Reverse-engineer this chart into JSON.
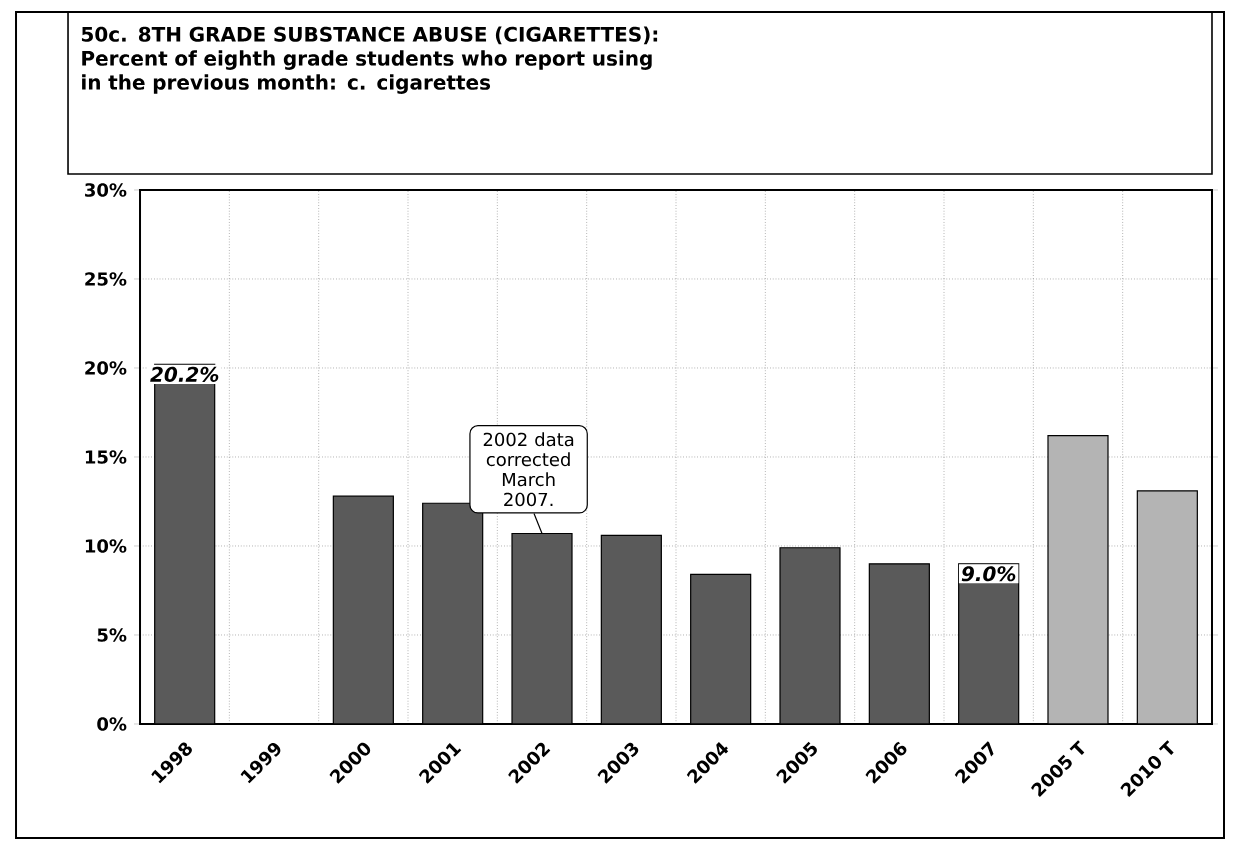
{
  "chart_data": {
    "type": "bar",
    "title": "50c. 8TH GRADE SUBSTANCE ABUSE (CIGARETTES): Percent of eighth grade students who report using in the previous month: c. cigarettes",
    "categories": [
      "1998",
      "1999",
      "2000",
      "2001",
      "2002",
      "2003",
      "2004",
      "2005",
      "2006",
      "2007",
      "2005 T",
      "2010 T"
    ],
    "values": [
      20.2,
      null,
      12.8,
      12.4,
      10.7,
      10.6,
      8.4,
      9.9,
      9.0,
      9.0,
      16.2,
      13.1
    ],
    "colors": [
      "#5a5a5a",
      "#5a5a5a",
      "#5a5a5a",
      "#5a5a5a",
      "#5a5a5a",
      "#5a5a5a",
      "#5a5a5a",
      "#5a5a5a",
      "#5a5a5a",
      "#5a5a5a",
      "#b4b4b4",
      "#b4b4b4"
    ],
    "value_labels": [
      "20.2%",
      null,
      null,
      null,
      null,
      null,
      null,
      null,
      null,
      "9.0%",
      null,
      null
    ],
    "ylim": [
      0,
      30
    ],
    "yticks": [
      {
        "value": 0,
        "label": "0%"
      },
      {
        "value": 5,
        "label": "5%"
      },
      {
        "value": 10,
        "label": "10%"
      },
      {
        "value": 15,
        "label": "15%"
      },
      {
        "value": 20,
        "label": "20%"
      },
      {
        "value": 25,
        "label": "25%"
      },
      {
        "value": 30,
        "label": "30%"
      }
    ],
    "annotations": [
      {
        "text": "2002 data corrected March 2007.",
        "x": "2002",
        "y": 10.7
      }
    ],
    "grid": true
  }
}
